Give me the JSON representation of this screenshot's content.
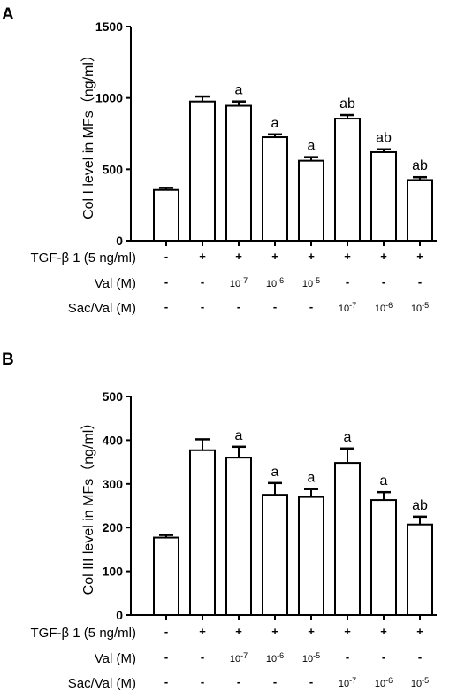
{
  "chart_data": [
    {
      "type": "bar",
      "panel_label": "A",
      "ylabel": "Col I level in MFs（ng/ml）",
      "ylim": [
        0,
        1500
      ],
      "yticks": [
        "0",
        "500",
        "1000",
        "1500"
      ],
      "ytick_values": [
        0,
        500,
        1000,
        1500
      ],
      "values": [
        355,
        975,
        945,
        725,
        560,
        855,
        620,
        425
      ],
      "errors": [
        15,
        35,
        30,
        20,
        25,
        25,
        20,
        20
      ],
      "annotations": [
        "",
        "",
        "a",
        "a",
        "a",
        "ab",
        "ab",
        "ab"
      ],
      "conditions": [
        {
          "label": "TGF-β 1 (5 ng/ml)",
          "cells": [
            "-",
            "+",
            "+",
            "+",
            "+",
            "+",
            "+",
            "+"
          ]
        },
        {
          "label": "Val (M)",
          "cells": [
            "-",
            "-",
            "10-7",
            "10-6",
            "10-5",
            "-",
            "-",
            "-"
          ]
        },
        {
          "label": "Sac/Val (M)",
          "cells": [
            "-",
            "-",
            "-",
            "-",
            "-",
            "10-7",
            "10-6",
            "10-5"
          ]
        }
      ]
    },
    {
      "type": "bar",
      "panel_label": "B",
      "ylabel": "Col III level in MFs（ng/ml）",
      "ylim": [
        0,
        500
      ],
      "yticks": [
        "0",
        "100",
        "200",
        "300",
        "400",
        "500"
      ],
      "ytick_values": [
        0,
        100,
        200,
        300,
        400,
        500
      ],
      "values": [
        177,
        377,
        360,
        275,
        270,
        348,
        263,
        207
      ],
      "errors": [
        6,
        25,
        25,
        27,
        18,
        33,
        18,
        18
      ],
      "annotations": [
        "",
        "",
        "a",
        "a",
        "a",
        "a",
        "a",
        "ab"
      ],
      "conditions": [
        {
          "label": "TGF-β 1 (5 ng/ml)",
          "cells": [
            "-",
            "+",
            "+",
            "+",
            "+",
            "+",
            "+",
            "+"
          ]
        },
        {
          "label": "Val (M)",
          "cells": [
            "-",
            "-",
            "10-7",
            "10-6",
            "10-5",
            "-",
            "-",
            "-"
          ]
        },
        {
          "label": "Sac/Val (M)",
          "cells": [
            "-",
            "-",
            "-",
            "-",
            "-",
            "10-7",
            "10-6",
            "10-5"
          ]
        }
      ]
    }
  ]
}
